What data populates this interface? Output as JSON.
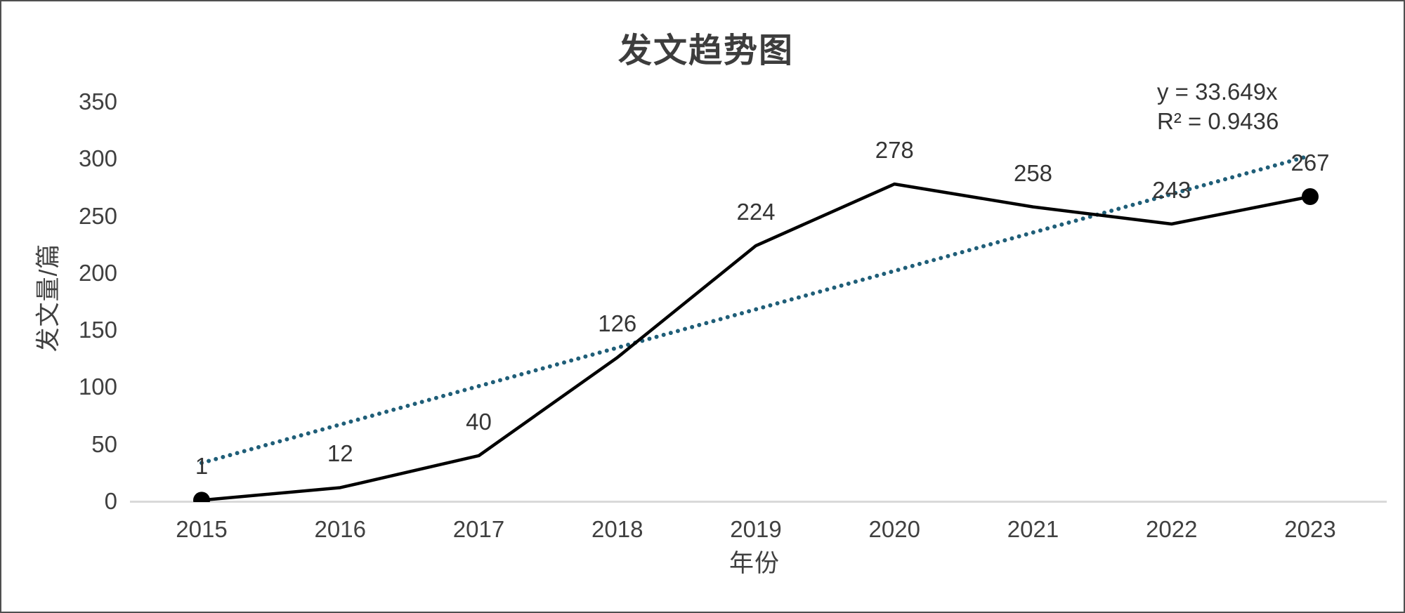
{
  "window": {
    "background": "#ffffff",
    "border_color": "#4f4f4f"
  },
  "chart_data": {
    "type": "line",
    "title": "发文趋势图",
    "xlabel": "年份",
    "ylabel": "发文量/篇",
    "categories": [
      "2015",
      "2016",
      "2017",
      "2018",
      "2019",
      "2020",
      "2021",
      "2022",
      "2023"
    ],
    "series": [
      {
        "name": "发文量",
        "values": [
          1,
          12,
          40,
          126,
          224,
          278,
          258,
          243,
          267
        ],
        "color": "#000000",
        "marker": "circle-first-and-last"
      }
    ],
    "data_labels": [
      "1",
      "12",
      "40",
      "126",
      "224",
      "278",
      "258",
      "243",
      "267"
    ],
    "trendline": {
      "equation": "y = 33.649x",
      "r2": "R² = 0.9436",
      "slope": 33.649,
      "style": "dotted",
      "color": "#1F5E78"
    },
    "ylim": [
      0,
      350
    ],
    "ytick_step": 50,
    "yticks": [
      "0",
      "50",
      "100",
      "150",
      "200",
      "250",
      "300",
      "350"
    ],
    "grid": false,
    "legend_position": "none",
    "axis_line_color": "#d9d9d9",
    "text_color": "#404040"
  }
}
